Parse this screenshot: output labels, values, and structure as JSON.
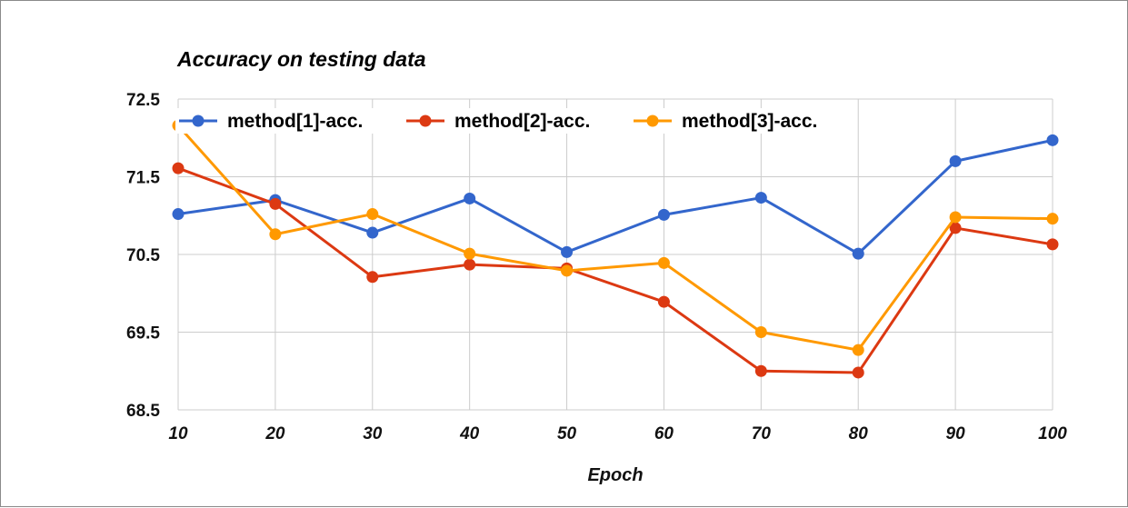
{
  "chart_data": {
    "type": "line",
    "title": "Accuracy on testing data",
    "xlabel": "Epoch",
    "ylabel": "",
    "x": [
      10,
      20,
      30,
      40,
      50,
      60,
      70,
      80,
      90,
      100
    ],
    "x_tick_labels": [
      "10",
      "20",
      "30",
      "40",
      "50",
      "60",
      "70",
      "80",
      "90",
      "100"
    ],
    "ylim": [
      68.5,
      72.5
    ],
    "y_ticks": [
      68.5,
      69.5,
      70.5,
      71.5,
      72.5
    ],
    "y_tick_labels": [
      "68.5",
      "69.5",
      "70.5",
      "71.5",
      "72.5"
    ],
    "grid": true,
    "legend_position": "top",
    "series": [
      {
        "name": "method[1]-acc.",
        "color": "#3366cc",
        "values": [
          71.02,
          71.2,
          70.78,
          71.22,
          70.53,
          71.01,
          71.23,
          70.51,
          71.7,
          71.97
        ]
      },
      {
        "name": "method[2]-acc.",
        "color": "#dc3912",
        "values": [
          71.61,
          71.15,
          70.21,
          70.37,
          70.32,
          69.89,
          69.0,
          68.98,
          70.84,
          70.63
        ]
      },
      {
        "name": "method[3]-acc.",
        "color": "#ff9900",
        "values": [
          72.16,
          70.76,
          71.02,
          70.51,
          70.29,
          70.39,
          69.5,
          69.27,
          70.98,
          70.96
        ]
      }
    ]
  }
}
